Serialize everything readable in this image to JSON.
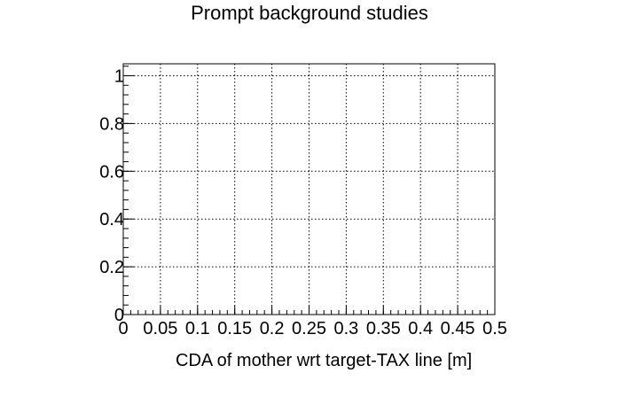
{
  "chart_data": {
    "type": "scatter",
    "title": "Prompt background studies",
    "xlabel": "CDA of mother wrt target-TAX line [m]",
    "ylabel": "",
    "xlim": [
      0,
      0.5
    ],
    "ylim": [
      0,
      1.05
    ],
    "x_ticks": [
      "0",
      "0.05",
      "0.1",
      "0.15",
      "0.2",
      "0.25",
      "0.3",
      "0.35",
      "0.4",
      "0.45",
      "0.5"
    ],
    "y_ticks": [
      "0",
      "0.2",
      "0.4",
      "0.6",
      "0.8",
      "1"
    ],
    "grid": true,
    "series": []
  }
}
